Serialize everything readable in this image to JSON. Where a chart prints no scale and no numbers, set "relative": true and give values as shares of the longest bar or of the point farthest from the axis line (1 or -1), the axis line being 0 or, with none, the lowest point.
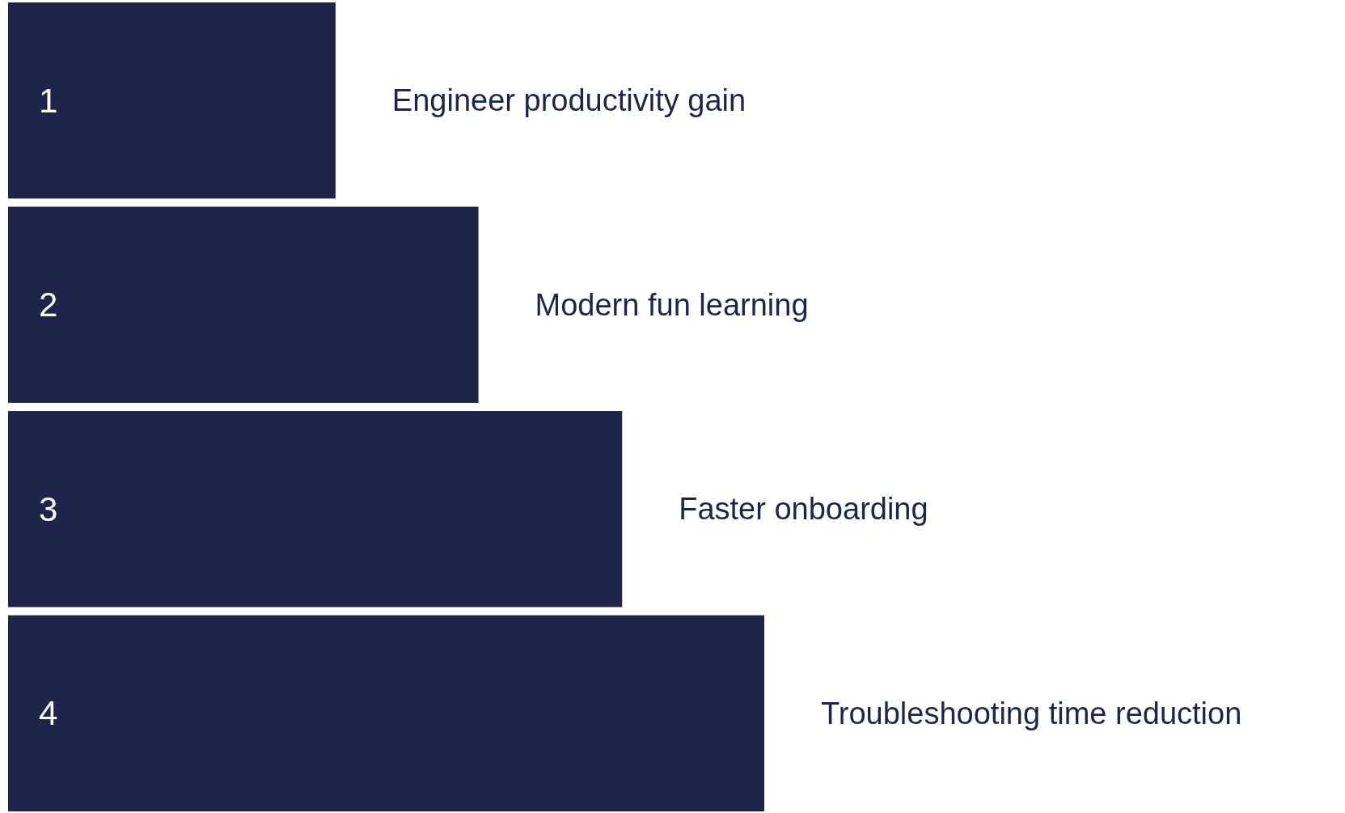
{
  "chart_data": {
    "type": "bar",
    "orientation": "horizontal",
    "relative": true,
    "categories": [
      "1",
      "2",
      "3",
      "4"
    ],
    "values": [
      0.433,
      0.622,
      0.812,
      1
    ],
    "color": "#1f244b",
    "annotations": [
      {
        "text": "Engineer productivity gain",
        "x": 0.433,
        "y": "1"
      },
      {
        "text": "Modern fun learning",
        "x": 0.622,
        "y": "2"
      },
      {
        "text": "Faster onboarding",
        "x": 0.812,
        "y": "3"
      },
      {
        "text": "Troubleshooting time reduction",
        "x": 1,
        "y": "4"
      }
    ]
  }
}
